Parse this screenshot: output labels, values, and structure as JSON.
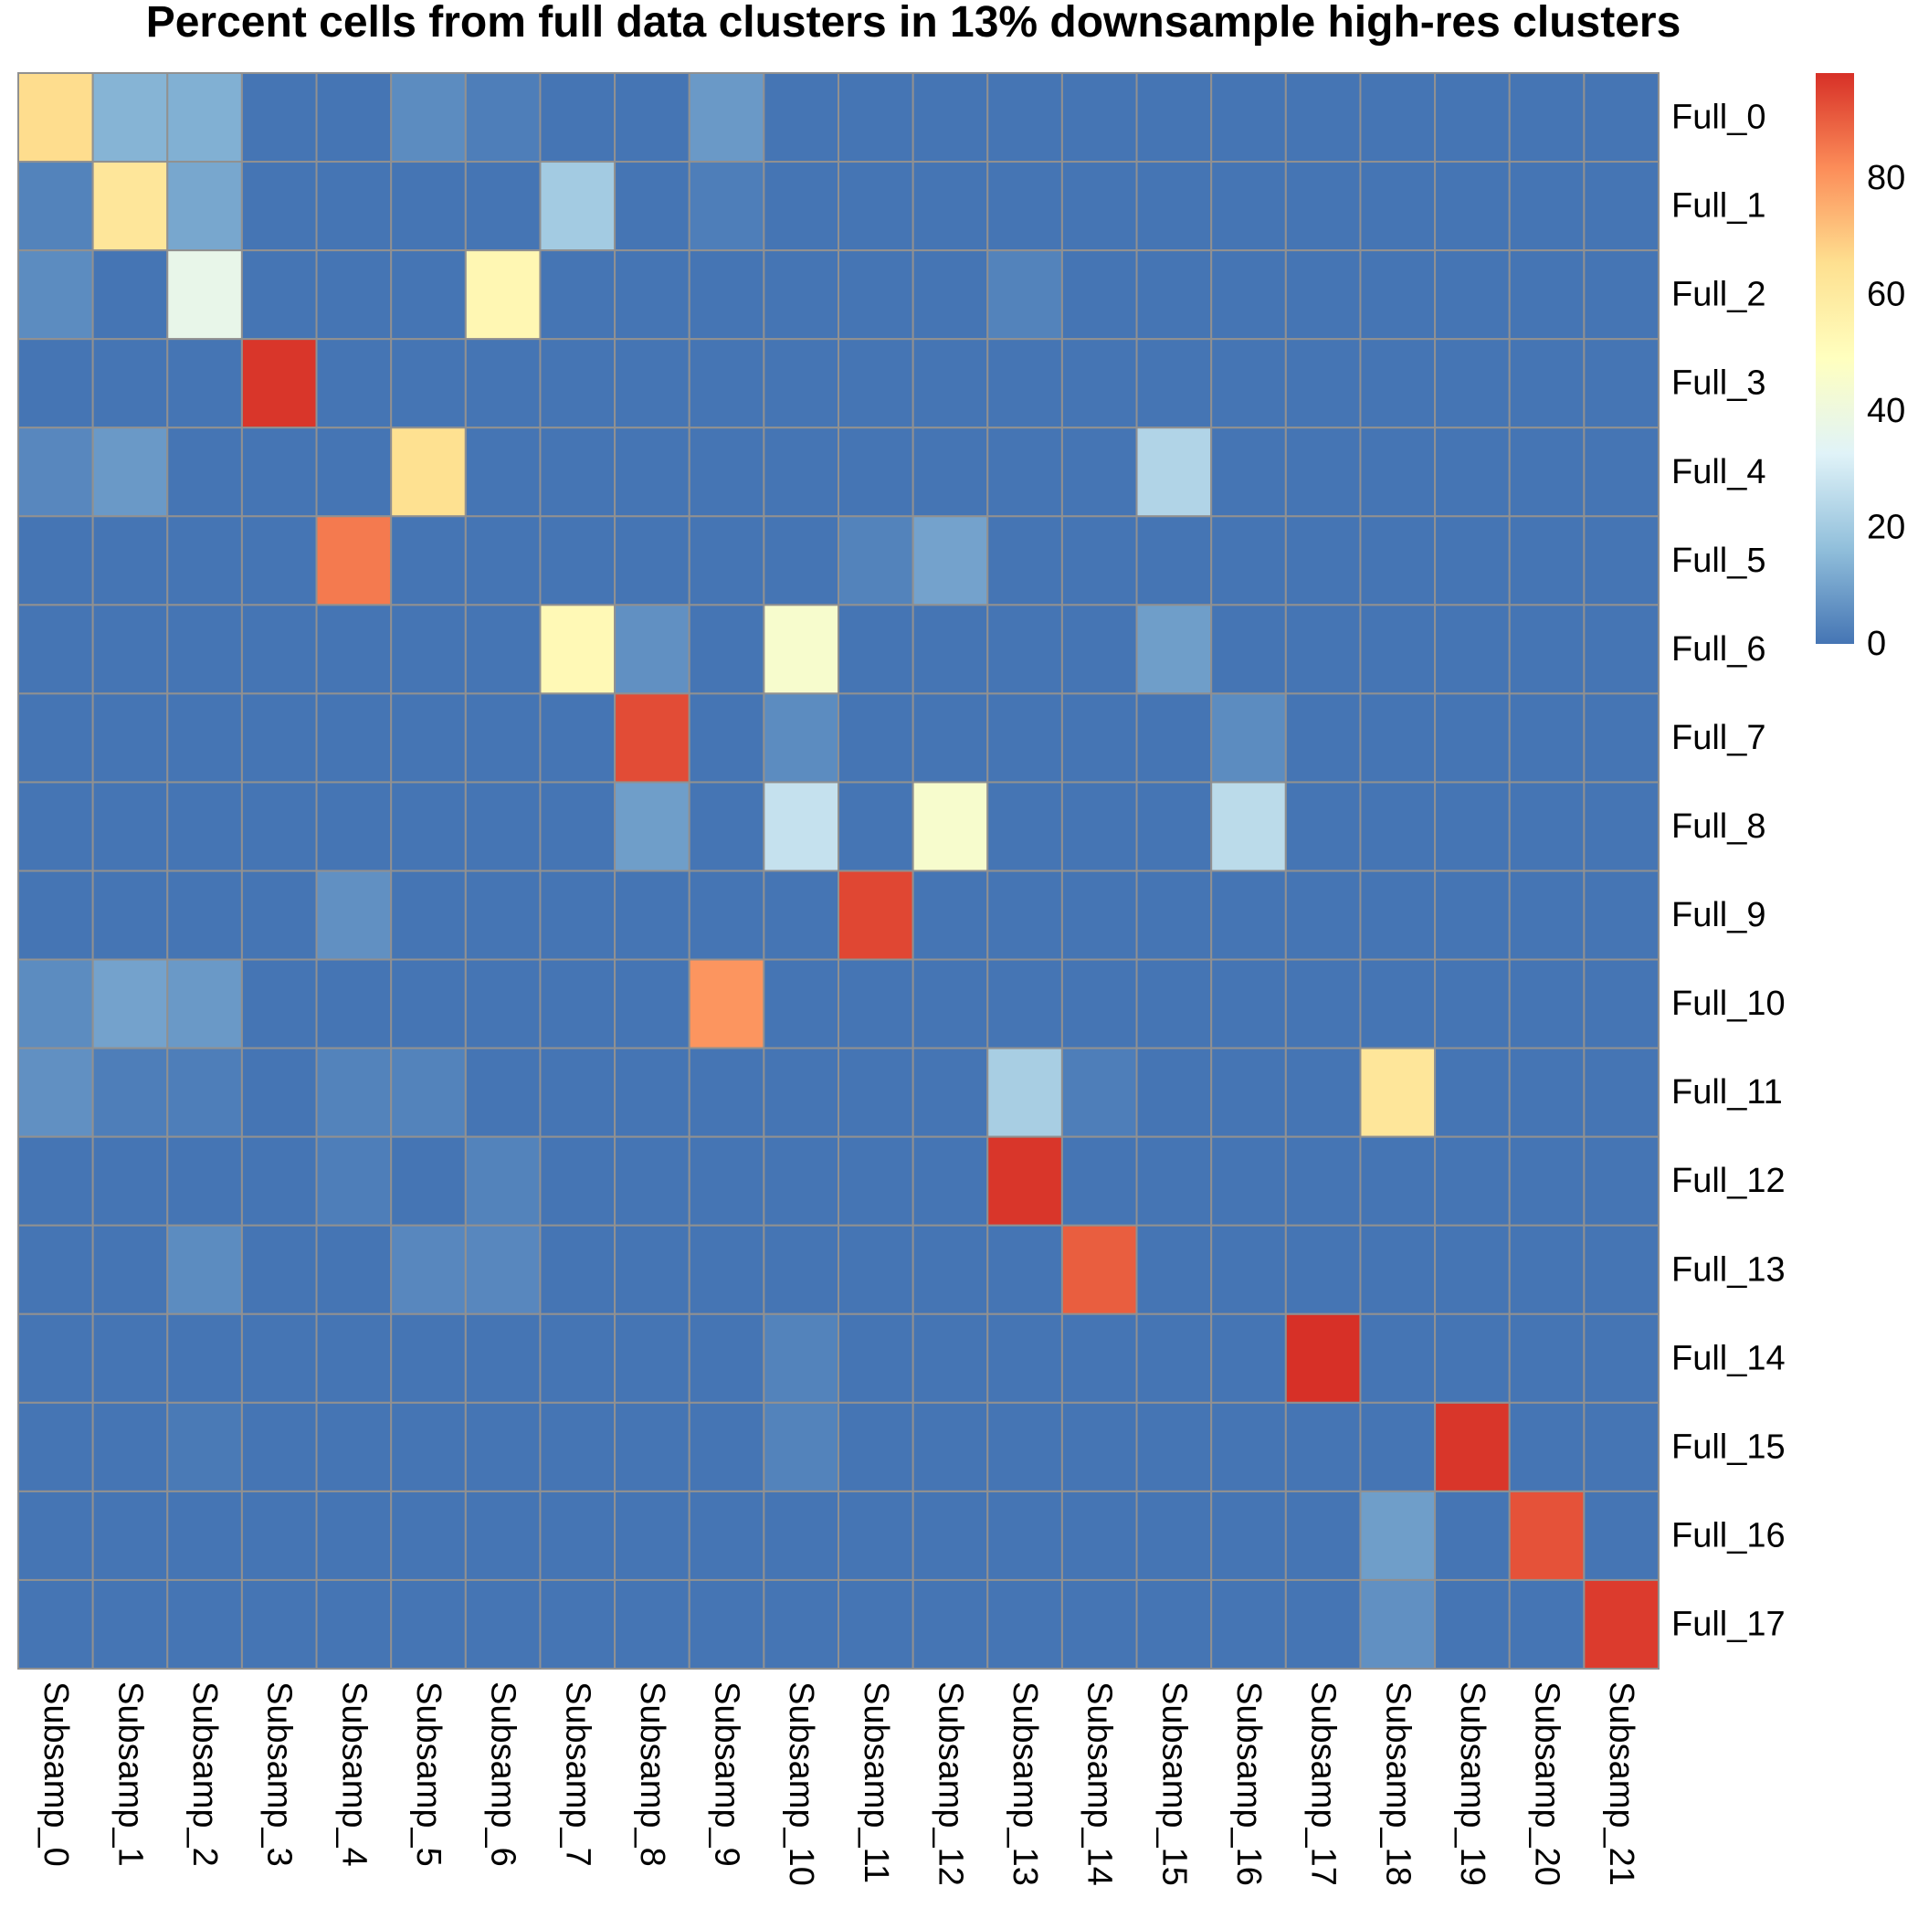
{
  "chart_data": {
    "type": "heatmap",
    "title": "Percent cells from full data clusters in 13% downsample high-res clusters",
    "rows": [
      "Full_0",
      "Full_1",
      "Full_2",
      "Full_3",
      "Full_4",
      "Full_5",
      "Full_6",
      "Full_7",
      "Full_8",
      "Full_9",
      "Full_10",
      "Full_11",
      "Full_12",
      "Full_13",
      "Full_14",
      "Full_15",
      "Full_16",
      "Full_17"
    ],
    "columns": [
      "Subsamp_0",
      "Subsamp_1",
      "Subsamp_2",
      "Subsamp_3",
      "Subsamp_4",
      "Subsamp_5",
      "Subsamp_6",
      "Subsamp_7",
      "Subsamp_8",
      "Subsamp_9",
      "Subsamp_10",
      "Subsamp_11",
      "Subsamp_12",
      "Subsamp_13",
      "Subsamp_14",
      "Subsamp_15",
      "Subsamp_16",
      "Subsamp_17",
      "Subsamp_18",
      "Subsamp_19",
      "Subsamp_20",
      "Subsamp_21"
    ],
    "values": [
      [
        66,
        14,
        13,
        0,
        0,
        5,
        2,
        0,
        0,
        8,
        0,
        0,
        0,
        0,
        0,
        0,
        0,
        0,
        0,
        0,
        0,
        0
      ],
      [
        3,
        62,
        11,
        0,
        0,
        0,
        0,
        20,
        0,
        2,
        0,
        0,
        0,
        0,
        0,
        0,
        0,
        0,
        0,
        0,
        0,
        0
      ],
      [
        5,
        0,
        37,
        0,
        0,
        0,
        53,
        0,
        0,
        0,
        0,
        0,
        0,
        3,
        0,
        0,
        0,
        0,
        0,
        0,
        0,
        0
      ],
      [
        0,
        0,
        0,
        97,
        0,
        0,
        0,
        0,
        0,
        0,
        0,
        0,
        0,
        0,
        0,
        0,
        0,
        0,
        0,
        0,
        0,
        0
      ],
      [
        4,
        8,
        0,
        0,
        0,
        65,
        0,
        0,
        0,
        0,
        0,
        0,
        0,
        0,
        0,
        23,
        0,
        0,
        0,
        0,
        0,
        0
      ],
      [
        0,
        0,
        0,
        0,
        85,
        0,
        0,
        0,
        0,
        0,
        0,
        3,
        10,
        0,
        0,
        0,
        0,
        0,
        0,
        0,
        0,
        0
      ],
      [
        0,
        0,
        0,
        0,
        0,
        0,
        0,
        52,
        6,
        0,
        45,
        0,
        0,
        0,
        0,
        9,
        0,
        0,
        0,
        0,
        0,
        0
      ],
      [
        0,
        0,
        0,
        0,
        0,
        0,
        0,
        0,
        93,
        0,
        5,
        0,
        0,
        0,
        0,
        0,
        5,
        0,
        0,
        0,
        0,
        0
      ],
      [
        0,
        0,
        0,
        0,
        0,
        0,
        0,
        0,
        9,
        0,
        27,
        0,
        45,
        0,
        0,
        0,
        25,
        0,
        0,
        0,
        0,
        0
      ],
      [
        0,
        0,
        0,
        0,
        6,
        0,
        0,
        0,
        0,
        0,
        0,
        94,
        0,
        0,
        0,
        0,
        0,
        0,
        0,
        0,
        0,
        0
      ],
      [
        5,
        10,
        8,
        0,
        0,
        0,
        0,
        0,
        0,
        80,
        0,
        0,
        0,
        0,
        0,
        0,
        0,
        0,
        0,
        0,
        0,
        0
      ],
      [
        6,
        2,
        2,
        0,
        3,
        3,
        0,
        0,
        0,
        0,
        0,
        0,
        0,
        21,
        2,
        0,
        0,
        0,
        62,
        0,
        0,
        0
      ],
      [
        0,
        0,
        0,
        0,
        2,
        0,
        3,
        0,
        0,
        0,
        0,
        0,
        0,
        97,
        0,
        0,
        0,
        0,
        0,
        0,
        0,
        0
      ],
      [
        0,
        0,
        5,
        0,
        0,
        4,
        4,
        0,
        0,
        0,
        0,
        0,
        0,
        0,
        90,
        0,
        0,
        0,
        0,
        0,
        0,
        0
      ],
      [
        0,
        0,
        0,
        0,
        0,
        0,
        0,
        0,
        0,
        0,
        3,
        0,
        0,
        0,
        0,
        0,
        0,
        98,
        0,
        0,
        0,
        0
      ],
      [
        0,
        0,
        1,
        0,
        0,
        0,
        0,
        0,
        0,
        0,
        3,
        0,
        0,
        0,
        0,
        0,
        0,
        0,
        0,
        97,
        0,
        0
      ],
      [
        0,
        0,
        0,
        0,
        0,
        0,
        0,
        0,
        0,
        0,
        0,
        0,
        0,
        0,
        0,
        0,
        0,
        0,
        9,
        0,
        92,
        0
      ],
      [
        0,
        0,
        0,
        0,
        0,
        0,
        0,
        0,
        0,
        0,
        0,
        0,
        0,
        0,
        0,
        0,
        0,
        0,
        6,
        0,
        0,
        96
      ]
    ],
    "colorscale": [
      "#4575B4",
      "#91BFDB",
      "#E0F3F8",
      "#FFFFBF",
      "#FEE090",
      "#FC8D59",
      "#D73027"
    ],
    "cell_border_color": "#919191",
    "zlim": [
      0,
      98
    ],
    "legend": {
      "ticks": [
        0,
        20,
        40,
        60,
        80
      ],
      "placement": "right"
    },
    "grid": true
  }
}
